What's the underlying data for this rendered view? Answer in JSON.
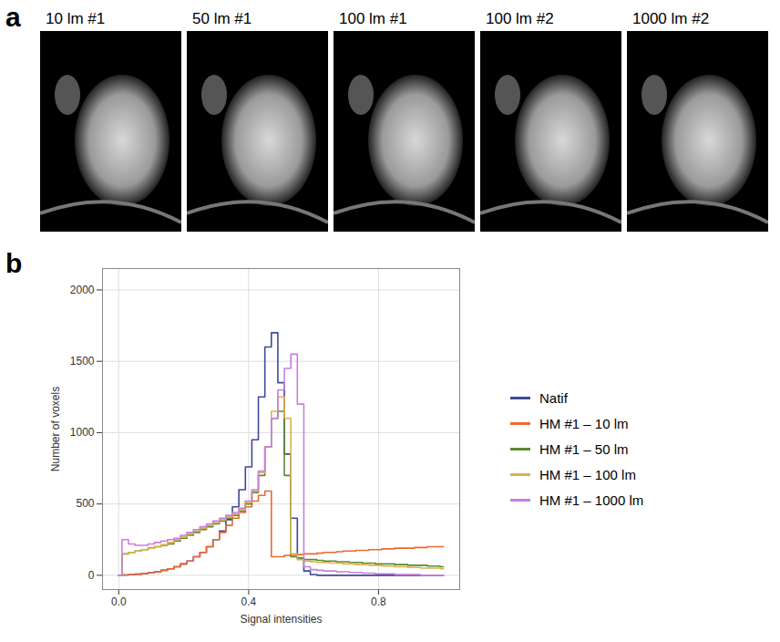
{
  "panel_a": {
    "label": "a",
    "images": [
      "10 lm #1",
      "50 lm #1",
      "100 lm #1",
      "100 lm #2",
      "1000 lm #2"
    ]
  },
  "chart_data": {
    "label": "b",
    "type": "line",
    "x_label": "Signal intensities",
    "y_label": "Number of voxels",
    "xlim": [
      -0.05,
      1.05
    ],
    "ylim": [
      -100,
      2150
    ],
    "xticks": [
      {
        "value": 0,
        "label": "0.0"
      },
      0.4,
      0.8
    ],
    "yticks": [
      0,
      500,
      1000,
      1500,
      2000
    ],
    "grid": true,
    "legend": "right",
    "x": [
      0,
      0.02,
      0.04,
      0.06,
      0.08,
      0.1,
      0.12,
      0.14,
      0.16,
      0.18,
      0.2,
      0.22,
      0.24,
      0.26,
      0.28,
      0.3,
      0.32,
      0.34,
      0.36,
      0.38,
      0.4,
      0.42,
      0.44,
      0.46,
      0.48,
      0.5,
      0.52,
      0.54,
      0.56,
      0.58,
      0.6,
      0.62,
      0.64,
      0.66,
      0.68,
      0.7,
      0.72,
      0.74,
      0.76,
      0.78,
      0.8,
      0.82,
      0.84,
      0.86,
      0.88,
      0.9,
      0.92,
      0.94,
      0.96,
      0.98,
      1
    ],
    "series": [
      {
        "name": "Natif",
        "color": "#3e4a9c",
        "values": [
          0,
          2,
          5,
          8,
          12,
          18,
          25,
          35,
          45,
          60,
          80,
          100,
          130,
          160,
          200,
          250,
          310,
          390,
          480,
          600,
          760,
          950,
          1250,
          1600,
          1700,
          1350,
          850,
          400,
          120,
          30,
          5,
          0,
          0,
          0,
          0,
          0,
          0,
          0,
          0,
          0,
          0,
          0,
          0,
          0,
          0,
          0,
          0,
          0,
          0,
          0,
          0
        ]
      },
      {
        "name": "HM #1 – 10 lm",
        "color": "#ea6a33",
        "values": [
          0,
          2,
          5,
          8,
          12,
          18,
          25,
          35,
          45,
          60,
          80,
          100,
          130,
          160,
          200,
          250,
          300,
          350,
          400,
          440,
          480,
          520,
          560,
          590,
          130,
          130,
          140,
          140,
          145,
          150,
          150,
          155,
          160,
          160,
          165,
          170,
          170,
          175,
          175,
          180,
          180,
          185,
          185,
          190,
          190,
          190,
          195,
          195,
          200,
          200,
          200
        ]
      },
      {
        "name": "HM #1 – 50 lm",
        "color": "#5b8b2f",
        "values": [
          0,
          150,
          160,
          170,
          180,
          190,
          200,
          210,
          220,
          240,
          260,
          280,
          300,
          320,
          340,
          360,
          380,
          400,
          420,
          450,
          500,
          580,
          700,
          900,
          1100,
          1150,
          700,
          130,
          120,
          110,
          110,
          105,
          100,
          100,
          95,
          95,
          90,
          90,
          85,
          85,
          80,
          80,
          80,
          75,
          75,
          70,
          70,
          70,
          65,
          65,
          60
        ]
      },
      {
        "name": "HM #1 – 100 lm",
        "color": "#dcb24c",
        "values": [
          0,
          150,
          160,
          170,
          180,
          190,
          200,
          215,
          230,
          250,
          270,
          290,
          310,
          330,
          350,
          370,
          390,
          410,
          430,
          460,
          510,
          590,
          720,
          900,
          1150,
          1250,
          1100,
          150,
          110,
          100,
          95,
          90,
          90,
          85,
          85,
          80,
          80,
          75,
          75,
          70,
          70,
          65,
          65,
          60,
          60,
          55,
          55,
          50,
          50,
          50,
          45
        ]
      },
      {
        "name": "HM #1 – 1000 lm",
        "color": "#c97fdc",
        "values": [
          0,
          250,
          220,
          210,
          210,
          220,
          230,
          240,
          250,
          260,
          280,
          300,
          320,
          340,
          360,
          380,
          400,
          420,
          440,
          470,
          520,
          600,
          730,
          900,
          1100,
          1300,
          1450,
          1550,
          1200,
          60,
          40,
          35,
          30,
          30,
          25,
          25,
          20,
          20,
          15,
          15,
          10,
          10,
          10,
          5,
          5,
          5,
          5,
          0,
          0,
          0,
          0
        ]
      }
    ]
  }
}
